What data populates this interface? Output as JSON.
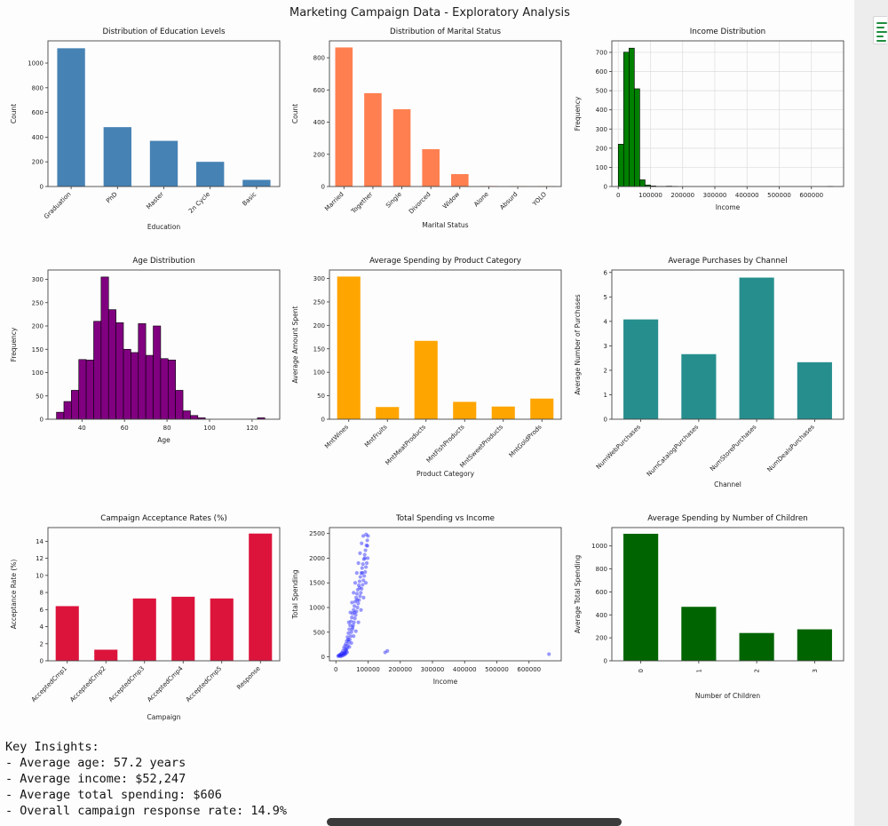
{
  "page": {
    "title": "Marketing Campaign Data - Exploratory Analysis"
  },
  "insights": {
    "heading": "Key Insights:",
    "lines": [
      "- Average age: 57.2 years",
      "- Average income: $52,247",
      "- Average total spending: $606",
      "- Overall campaign response rate: 14.9%"
    ]
  },
  "decor": {
    "sheet_icon_line_color": "#1e8e3e",
    "bottom_handle_color": "#3b3b3b"
  },
  "chart_data": [
    {
      "type": "bar",
      "title": "Distribution of Education Levels",
      "xlabel": "Education",
      "ylabel": "Count",
      "categories": [
        "Graduation",
        "PhD",
        "Master",
        "2n Cycle",
        "Basic"
      ],
      "values": [
        1120,
        481,
        370,
        200,
        54
      ],
      "ylim": [
        0,
        1180
      ],
      "yticks": [
        0,
        200,
        400,
        600,
        800,
        1000
      ],
      "color": "#4682B4",
      "tick_rotation": 45,
      "bottom": 56,
      "xlabel_off": 48,
      "grid": false
    },
    {
      "type": "bar",
      "title": "Distribution of Marital Status",
      "xlabel": "Marital Status",
      "ylabel": "Count",
      "categories": [
        "Married",
        "Together",
        "Single",
        "Divorced",
        "Widow",
        "Alone",
        "Absurd",
        "YOLO"
      ],
      "values": [
        864,
        580,
        480,
        232,
        77,
        3,
        2,
        2
      ],
      "ylim": [
        0,
        905
      ],
      "yticks": [
        0,
        200,
        400,
        600,
        800
      ],
      "color": "#FF7F50",
      "tick_rotation": 45,
      "bottom": 56,
      "xlabel_off": 46,
      "grid": false
    },
    {
      "type": "histogram",
      "title": "Income Distribution",
      "xlabel": "Income",
      "ylabel": "Frequency",
      "bin_start": 0,
      "bin_width": 16667,
      "bin_heights": [
        221,
        701,
        722,
        510,
        35,
        8,
        3,
        1,
        1,
        2,
        1,
        0,
        0,
        0,
        0,
        0,
        0,
        0,
        0,
        0,
        0,
        0,
        0,
        0,
        0,
        0,
        0,
        0,
        0,
        0,
        0,
        0,
        0,
        0,
        0,
        0,
        0,
        0,
        0,
        1
      ],
      "xlim": [
        -20000,
        700000
      ],
      "xticks": [
        0,
        100000,
        200000,
        300000,
        400000,
        500000,
        600000
      ],
      "ylim": [
        0,
        760
      ],
      "yticks": [
        0,
        100,
        200,
        300,
        400,
        500,
        600,
        700
      ],
      "color": "#008000",
      "edge": "#000000",
      "bottom": 56,
      "xlabel_off": 26,
      "grid": true
    },
    {
      "type": "histogram",
      "title": "Age Distribution",
      "xlabel": "Age",
      "ylabel": "Frequency",
      "bin_start": 28,
      "bin_width": 3.5,
      "bin_heights": [
        15,
        38,
        62,
        128,
        127,
        210,
        305,
        235,
        207,
        150,
        143,
        205,
        137,
        200,
        130,
        127,
        62,
        18,
        8,
        3,
        0,
        0,
        0,
        0,
        0,
        0,
        0,
        3
      ],
      "xlim": [
        24,
        133
      ],
      "xticks": [
        40,
        60,
        80,
        100,
        120
      ],
      "ylim": [
        0,
        320
      ],
      "yticks": [
        0,
        50,
        100,
        150,
        200,
        250,
        300
      ],
      "color": "#800080",
      "edge": "#000000",
      "bottom": 84,
      "xlabel_off": 26,
      "grid": false
    },
    {
      "type": "bar",
      "title": "Average Spending by Product Category",
      "xlabel": "Product Category",
      "ylabel": "Average Amount Spent",
      "categories": [
        "MntWines",
        "MntFruits",
        "MntMeatProducts",
        "MntFishProducts",
        "MntSweetProducts",
        "MntGoldProds"
      ],
      "values": [
        304,
        26,
        167,
        37,
        27,
        44
      ],
      "ylim": [
        0,
        318
      ],
      "yticks": [
        0,
        50,
        100,
        150,
        200,
        250,
        300
      ],
      "color": "#FFA500",
      "tick_rotation": 45,
      "bottom": 84,
      "xlabel_off": 64,
      "grid": false
    },
    {
      "type": "bar",
      "title": "Average Purchases by Channel",
      "xlabel": "Channel",
      "ylabel": "Average Number of Purchases",
      "categories": [
        "NumWebPurchases",
        "NumCatalogPurchases",
        "NumStorePurchases",
        "NumDealsPurchases"
      ],
      "values": [
        4.08,
        2.66,
        5.79,
        2.33
      ],
      "ylim": [
        0,
        6.1
      ],
      "yticks": [
        0,
        1,
        2,
        3,
        4,
        5,
        6
      ],
      "color": "#278E8E",
      "tick_rotation": 45,
      "bottom": 84,
      "xlabel_off": 76,
      "grid": false
    },
    {
      "type": "bar",
      "title": "Campaign Acceptance Rates (%)",
      "xlabel": "Campaign",
      "ylabel": "Acceptance Rate (%)",
      "categories": [
        "AcceptedCmp1",
        "AcceptedCmp2",
        "AcceptedCmp3",
        "AcceptedCmp4",
        "AcceptedCmp5",
        "Response"
      ],
      "values": [
        6.4,
        1.3,
        7.3,
        7.5,
        7.3,
        14.9
      ],
      "ylim": [
        0,
        15.6
      ],
      "yticks": [
        0,
        2,
        4,
        6,
        8,
        10,
        12,
        14
      ],
      "color": "#DC143C",
      "tick_rotation": 45,
      "bottom": 80,
      "xlabel_off": 66,
      "grid": false
    },
    {
      "type": "scatter",
      "title": "Total Spending vs Income",
      "xlabel": "Income",
      "ylabel": "Total Spending",
      "points": [
        [
          7000,
          15
        ],
        [
          9000,
          30
        ],
        [
          11000,
          20
        ],
        [
          13000,
          45
        ],
        [
          15000,
          10
        ],
        [
          16000,
          60
        ],
        [
          17500,
          35
        ],
        [
          19000,
          80
        ],
        [
          20500,
          25
        ],
        [
          22000,
          120
        ],
        [
          23500,
          60
        ],
        [
          25000,
          180
        ],
        [
          26500,
          90
        ],
        [
          28000,
          220
        ],
        [
          29500,
          140
        ],
        [
          31000,
          260
        ],
        [
          32000,
          110
        ],
        [
          33500,
          320
        ],
        [
          35000,
          180
        ],
        [
          36000,
          400
        ],
        [
          37500,
          230
        ],
        [
          39000,
          480
        ],
        [
          40000,
          300
        ],
        [
          41500,
          560
        ],
        [
          43000,
          350
        ],
        [
          44000,
          640
        ],
        [
          45500,
          420
        ],
        [
          47000,
          720
        ],
        [
          48000,
          500
        ],
        [
          49500,
          800
        ],
        [
          51000,
          560
        ],
        [
          52000,
          880
        ],
        [
          53500,
          640
        ],
        [
          55000,
          950
        ],
        [
          56000,
          700
        ],
        [
          57500,
          1030
        ],
        [
          59000,
          780
        ],
        [
          60000,
          1120
        ],
        [
          61500,
          850
        ],
        [
          63000,
          1200
        ],
        [
          64000,
          920
        ],
        [
          65500,
          1280
        ],
        [
          67000,
          1000
        ],
        [
          68000,
          1360
        ],
        [
          69500,
          1080
        ],
        [
          71000,
          1450
        ],
        [
          72000,
          1150
        ],
        [
          73500,
          1530
        ],
        [
          75000,
          1230
        ],
        [
          76000,
          1620
        ],
        [
          77500,
          1300
        ],
        [
          79000,
          1700
        ],
        [
          80000,
          1380
        ],
        [
          81500,
          1800
        ],
        [
          83000,
          1460
        ],
        [
          84000,
          1880
        ],
        [
          85500,
          1550
        ],
        [
          87000,
          1980
        ],
        [
          88000,
          1640
        ],
        [
          89500,
          2070
        ],
        [
          91000,
          1720
        ],
        [
          92000,
          2160
        ],
        [
          93500,
          1820
        ],
        [
          95000,
          2260
        ],
        [
          96000,
          1900
        ],
        [
          97500,
          2360
        ],
        [
          99000,
          2000
        ],
        [
          100000,
          2450
        ],
        [
          94000,
          2480
        ],
        [
          98000,
          2250
        ],
        [
          30000,
          60
        ],
        [
          35000,
          90
        ],
        [
          42000,
          200
        ],
        [
          48000,
          280
        ],
        [
          55000,
          420
        ],
        [
          62000,
          520
        ],
        [
          70000,
          700
        ],
        [
          78000,
          950
        ],
        [
          86000,
          1200
        ],
        [
          93000,
          1500
        ],
        [
          40000,
          700
        ],
        [
          50000,
          1100
        ],
        [
          60000,
          1500
        ],
        [
          70000,
          1900
        ],
        [
          80000,
          2300
        ],
        [
          45000,
          900
        ],
        [
          55000,
          1300
        ],
        [
          65000,
          1700
        ],
        [
          75000,
          2100
        ],
        [
          85000,
          2450
        ],
        [
          25000,
          40
        ],
        [
          28000,
          70
        ],
        [
          33000,
          150
        ],
        [
          38000,
          350
        ],
        [
          52000,
          600
        ],
        [
          58000,
          900
        ],
        [
          66000,
          1150
        ],
        [
          74000,
          1400
        ],
        [
          82000,
          1700
        ],
        [
          90000,
          2000
        ],
        [
          662000,
          55
        ],
        [
          160000,
          120
        ],
        [
          153000,
          90
        ]
      ],
      "xlim": [
        -20000,
        700000
      ],
      "xticks": [
        0,
        100000,
        200000,
        300000,
        400000,
        500000,
        600000
      ],
      "ylim": [
        -80,
        2620
      ],
      "yticks": [
        0,
        500,
        1000,
        1500,
        2000,
        2500
      ],
      "color": "#1f1fff",
      "opacity": 0.45,
      "bottom": 80,
      "xlabel_off": 26,
      "grid": false
    },
    {
      "type": "bar",
      "title": "Average Spending by Number of Children",
      "xlabel": "Number of Children",
      "ylabel": "Average Total Spending",
      "categories": [
        "0",
        "1",
        "2",
        "3"
      ],
      "values": [
        1106,
        470,
        242,
        274
      ],
      "ylim": [
        0,
        1160
      ],
      "yticks": [
        0,
        200,
        400,
        600,
        800,
        1000
      ],
      "color": "#006400",
      "tick_rotation": 90,
      "bottom": 80,
      "xlabel_off": 42,
      "grid": false
    }
  ]
}
